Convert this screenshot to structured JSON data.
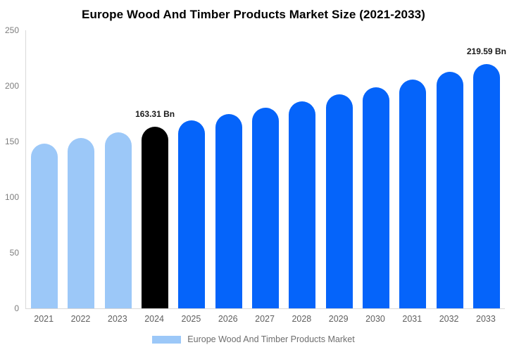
{
  "title": "Europe Wood And Timber Products Market Size (2021-2033)",
  "legend": {
    "label": "Europe Wood And Timber Products Market",
    "swatch_color": "#9cc8f8"
  },
  "colors": {
    "historical": "#9cc8f8",
    "highlight": "#000000",
    "forecast": "#0564fa",
    "axis_line": "#d9d9d9",
    "tick_text": "#7d7d7d",
    "value_label_text": "#1a1a1a"
  },
  "chart_data": {
    "type": "bar",
    "title": "Europe Wood And Timber Products Market Size (2021-2033)",
    "unit": "Bn",
    "categories": [
      "2021",
      "2022",
      "2023",
      "2024",
      "2025",
      "2026",
      "2027",
      "2028",
      "2029",
      "2030",
      "2031",
      "2032",
      "2033"
    ],
    "values": [
      147.96,
      152.91,
      158.02,
      163.31,
      168.77,
      174.42,
      180.25,
      186.28,
      192.51,
      198.95,
      205.6,
      212.48,
      219.59
    ],
    "bar_roles": [
      "historical",
      "historical",
      "historical",
      "highlight",
      "forecast",
      "forecast",
      "forecast",
      "forecast",
      "forecast",
      "forecast",
      "forecast",
      "forecast",
      "forecast"
    ],
    "annotations": [
      {
        "category": "2024",
        "text": "163.31 Bn"
      },
      {
        "category": "2033",
        "text": "219.59 Bn"
      }
    ],
    "yticks": [
      0,
      50,
      100,
      150,
      200,
      250
    ],
    "ylim": [
      0,
      250
    ],
    "xlabel": "",
    "ylabel": "",
    "grid": false,
    "legend_position": "bottom",
    "legend_entries": [
      "Europe Wood And Timber Products Market"
    ]
  }
}
